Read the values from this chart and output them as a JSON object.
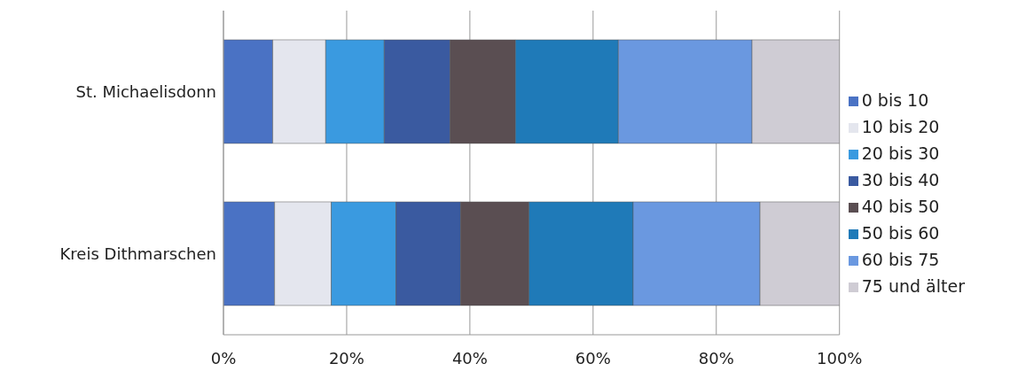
{
  "chart_data": {
    "type": "bar",
    "orientation": "horizontal",
    "stacked": true,
    "categories": [
      "St. Michaelisdonn",
      "Kreis Dithmarschen"
    ],
    "series": [
      {
        "name": "0 bis 10",
        "color": "#4a72c4",
        "values": [
          8.0,
          8.3
        ]
      },
      {
        "name": "10 bis 20",
        "color": "#e4e6ee",
        "values": [
          8.6,
          9.2
        ]
      },
      {
        "name": "20 bis 30",
        "color": "#3a9ae0",
        "values": [
          9.5,
          10.5
        ]
      },
      {
        "name": "30 bis 40",
        "color": "#3a5aa0",
        "values": [
          10.7,
          10.5
        ]
      },
      {
        "name": "40 bis 50",
        "color": "#5a4e52",
        "values": [
          10.6,
          11.1
        ]
      },
      {
        "name": "50 bis 60",
        "color": "#1f7ab8",
        "values": [
          16.7,
          16.9
        ]
      },
      {
        "name": "60 bis 75",
        "color": "#6a98e0",
        "values": [
          21.7,
          20.6
        ]
      },
      {
        "name": "75 und älter",
        "color": "#cfccd4",
        "values": [
          14.2,
          12.9
        ]
      }
    ],
    "xlim": [
      0,
      100
    ],
    "xticks": [
      {
        "value": 0,
        "label": "0%"
      },
      {
        "value": 20,
        "label": "20%"
      },
      {
        "value": 40,
        "label": "40%"
      },
      {
        "value": 60,
        "label": "60%"
      },
      {
        "value": 80,
        "label": "80%"
      },
      {
        "value": 100,
        "label": "100%"
      }
    ],
    "grid": "x",
    "legend": "right"
  }
}
